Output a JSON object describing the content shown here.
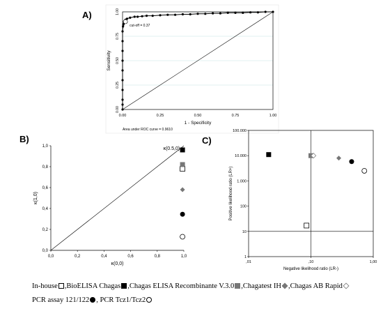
{
  "panel_labels": {
    "a": "A)",
    "b": "B)",
    "c": "C)"
  },
  "chart_data": [
    {
      "panel": "A",
      "type": "line",
      "xlabel": "1 - Specificity",
      "ylabel": "Sensitivity",
      "xlim": [
        0,
        1
      ],
      "ylim": [
        0,
        1
      ],
      "x_ticks": [
        "0.00",
        "0.25",
        "0.50",
        "0.75",
        "1.00"
      ],
      "y_ticks": [
        "0.00",
        "0.25",
        "0.50",
        "0.75",
        "1.00"
      ],
      "grid": true,
      "annotation": "cut-off = 0.37",
      "annotation_point": [
        0.01,
        0.9
      ],
      "footer": "Area under ROC curve = 0.9610",
      "series": [
        {
          "x": [
            0,
            0,
            0,
            0,
            0,
            0,
            0,
            0,
            0,
            0,
            0.003,
            0.005,
            0.008,
            0.01,
            0.015,
            0.02,
            0.03,
            0.05,
            0.08,
            0.1,
            0.13,
            0.16,
            0.2,
            0.25,
            0.3,
            0.35,
            0.4,
            0.45,
            0.5,
            0.55,
            0.6,
            0.65,
            0.7,
            0.75,
            0.8,
            0.85,
            0.9,
            0.95,
            1
          ],
          "y": [
            0,
            0.05,
            0.1,
            0.2,
            0.3,
            0.4,
            0.5,
            0.6,
            0.7,
            0.8,
            0.85,
            0.87,
            0.88,
            0.9,
            0.91,
            0.92,
            0.93,
            0.94,
            0.95,
            0.95,
            0.955,
            0.96,
            0.96,
            0.965,
            0.97,
            0.97,
            0.975,
            0.975,
            0.98,
            0.98,
            0.985,
            0.985,
            0.99,
            0.99,
            0.99,
            0.995,
            0.995,
            1,
            1
          ]
        },
        {
          "x": [
            0,
            1
          ],
          "y": [
            0,
            1
          ]
        }
      ]
    },
    {
      "panel": "B",
      "type": "scatter",
      "xlabel": "κ(0,0)",
      "ylabel": "κ(1,0)",
      "xlim": [
        0,
        1
      ],
      "ylim": [
        0,
        1
      ],
      "x_ticks": [
        "0,0",
        "0,2",
        "0,4",
        "0,6",
        "0,8",
        "1,0"
      ],
      "y_ticks": [
        "0,0",
        "0,2",
        "0,4",
        "0,6",
        "0,8",
        "1,0"
      ],
      "annotation": "κ(0.5,0)",
      "series": [
        {
          "symbol": "open-square",
          "x": 0.99,
          "y": 0.78
        },
        {
          "symbol": "filled-square",
          "x": 0.99,
          "y": 0.96
        },
        {
          "symbol": "grey-square",
          "x": 0.99,
          "y": 0.82
        },
        {
          "symbol": "diamond",
          "x": 0.99,
          "y": 0.58
        },
        {
          "symbol": "filled-circle",
          "x": 0.99,
          "y": 0.345
        },
        {
          "symbol": "open-circle",
          "x": 0.99,
          "y": 0.13
        }
      ],
      "diagonal": {
        "x": [
          0,
          1
        ],
        "y": [
          0,
          1
        ]
      }
    },
    {
      "panel": "C",
      "type": "scatter",
      "xlabel": "Negative likelihood ratio (LR-)",
      "ylabel": "Positive likelihood ratio (LR+)",
      "x_scale": "log",
      "y_scale": "log",
      "xlim": [
        0.01,
        1
      ],
      "ylim": [
        1,
        100000
      ],
      "x_ticks": [
        {
          "value": 0.01,
          "label": ",01"
        },
        {
          "value": 0.1,
          "label": ",10"
        },
        {
          "value": 1,
          "label": "1,00"
        }
      ],
      "y_ticks": [
        {
          "value": 1,
          "label": "1"
        },
        {
          "value": 10,
          "label": "10"
        },
        {
          "value": 100,
          "label": "100"
        },
        {
          "value": 1000,
          "label": "1.000"
        },
        {
          "value": 10000,
          "label": "10.000"
        },
        {
          "value": 100000,
          "label": "100.000"
        }
      ],
      "reference_lines": {
        "x": 0.1,
        "y": 10
      },
      "series": [
        {
          "symbol": "open-square",
          "x": 0.085,
          "y": 17
        },
        {
          "symbol": "filled-square",
          "x": 0.021,
          "y": 11000
        },
        {
          "symbol": "grey-square",
          "x": 0.1,
          "y": 10000
        },
        {
          "symbol": "open-diamond",
          "x": 0.11,
          "y": 10000
        },
        {
          "symbol": "diamond",
          "x": 0.28,
          "y": 8000
        },
        {
          "symbol": "filled-circle",
          "x": 0.45,
          "y": 5800
        },
        {
          "symbol": "open-circle",
          "x": 0.72,
          "y": 2500
        }
      ]
    }
  ],
  "legend": [
    {
      "label": "In-house",
      "symbol": "open-square",
      "sep": ","
    },
    {
      "label": "BioELISA Chagas",
      "symbol": "filled-square",
      "sep": ","
    },
    {
      "label": "Chagas ELISA Recombinante V.3.0",
      "symbol": "grey-square",
      "sep": ","
    },
    {
      "label": "Chagatest IH",
      "symbol": "diamond",
      "sep": ","
    },
    {
      "label": "Chagas AB Rapid",
      "symbol": "open-diamond",
      "sep": ""
    },
    {
      "label": "PCR assay 121/122",
      "symbol": "filled-circle",
      "sep": ", "
    },
    {
      "label": "PCR Tcz1/Tcz2",
      "symbol": "open-circle",
      "sep": ""
    }
  ]
}
